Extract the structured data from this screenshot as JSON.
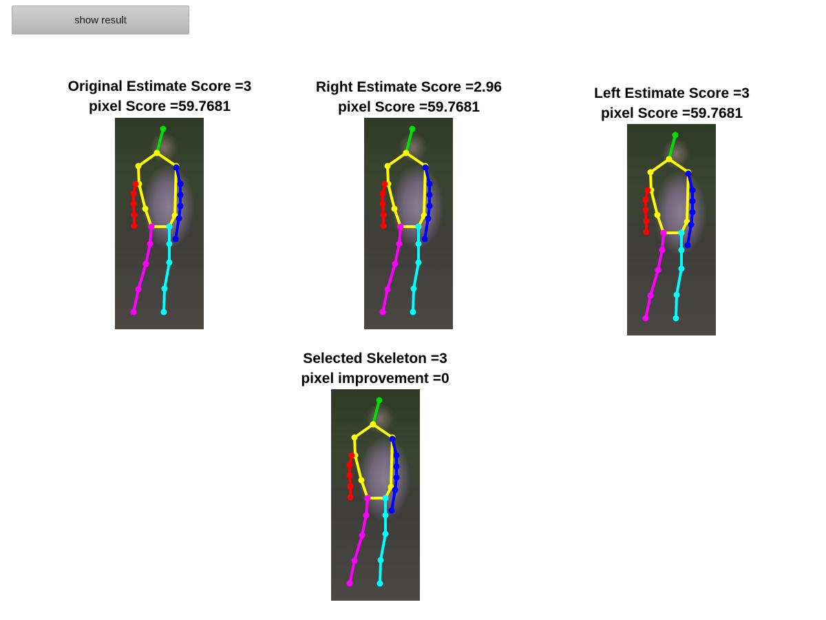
{
  "button": {
    "label": "show result"
  },
  "panels": [
    {
      "line1": "Original Estimate Score =3",
      "line2": "pixel Score =59.7681"
    },
    {
      "line1": "Right Estimate Score =2.96",
      "line2": "pixel Score =59.7681"
    },
    {
      "line1": "Left Estimate Score =3",
      "line2": "pixel Score =59.7681"
    },
    {
      "line1": "Selected Skeleton =3",
      "line2": "pixel improvement =0"
    }
  ],
  "colors": {
    "head": "#00e000",
    "torso": "#ffff00",
    "right_arm": "#ff0000",
    "left_arm": "#0000ff",
    "right_leg": "#ff00ff",
    "left_leg": "#00ffff"
  }
}
